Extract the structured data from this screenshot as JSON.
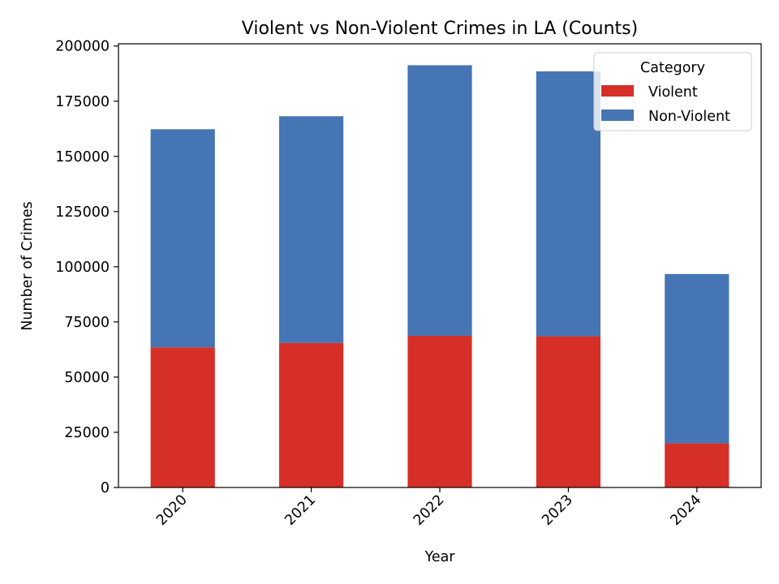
{
  "chart_data": {
    "type": "bar",
    "stacked": true,
    "title": "Violent vs Non-Violent Crimes in LA (Counts)",
    "xlabel": "Year",
    "ylabel": "Number of Crimes",
    "categories": [
      "2020",
      "2021",
      "2022",
      "2023",
      "2024"
    ],
    "series": [
      {
        "name": "Violent",
        "color": "#d62f27",
        "values": [
          63500,
          65500,
          68700,
          68500,
          20000
        ]
      },
      {
        "name": "Non-Violent",
        "color": "#4575b4",
        "values": [
          98800,
          102700,
          122600,
          120000,
          76700
        ]
      }
    ],
    "ylim": [
      0,
      201000
    ],
    "yticks": [
      0,
      25000,
      50000,
      75000,
      100000,
      125000,
      150000,
      175000,
      200000
    ],
    "legend": {
      "title": "Category",
      "placement": "top-right"
    },
    "grid": false
  }
}
